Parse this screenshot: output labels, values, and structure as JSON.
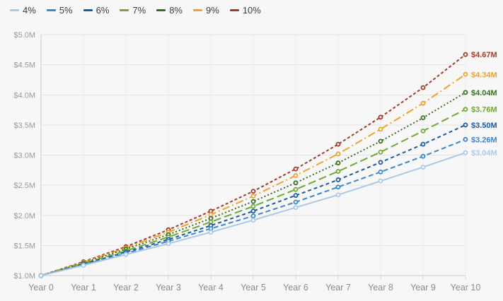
{
  "chart_data": {
    "type": "line",
    "x": [
      0,
      1,
      2,
      3,
      4,
      5,
      6,
      7,
      8,
      9,
      10
    ],
    "x_tick_labels": [
      "Year 0",
      "Year 1",
      "Year 2",
      "Year 3",
      "Year 4",
      "Year 5",
      "Year 6",
      "Year 7",
      "Year 8",
      "Year 9",
      "Year 10"
    ],
    "y_tick_labels": [
      "$1.0M",
      "$1.5M",
      "$2.0M",
      "$2.5M",
      "$3.0M",
      "$3.5M",
      "$4.0M",
      "$4.5M",
      "$5.0M"
    ],
    "ylim": [
      1.0,
      5.0
    ],
    "y_tick_step": 0.5,
    "y_unit": "USD millions",
    "grid": "on",
    "legend_position": "top-left",
    "series": [
      {
        "name": "4%",
        "color": "#a9c9e8",
        "dash": "solid",
        "end_label": "$3.04M",
        "values": [
          1.0,
          1.17,
          1.35,
          1.53,
          1.72,
          1.92,
          2.13,
          2.34,
          2.57,
          2.8,
          3.04
        ]
      },
      {
        "name": "5%",
        "color": "#3d87c9",
        "dash": "dash",
        "end_label": "$3.26M",
        "values": [
          1.0,
          1.18,
          1.37,
          1.57,
          1.78,
          1.99,
          2.22,
          2.47,
          2.72,
          2.98,
          3.26
        ]
      },
      {
        "name": "6%",
        "color": "#1a5c9e",
        "dash": "mediumdash",
        "end_label": "$3.50M",
        "values": [
          1.0,
          1.19,
          1.39,
          1.6,
          1.83,
          2.07,
          2.33,
          2.59,
          2.88,
          3.18,
          3.5
        ]
      },
      {
        "name": "7%",
        "color": "#70a833",
        "dash": "longdash",
        "end_label": "$3.76M",
        "values": [
          1.0,
          1.2,
          1.41,
          1.64,
          1.89,
          2.15,
          2.43,
          2.73,
          3.05,
          3.4,
          3.76
        ]
      },
      {
        "name": "8%",
        "color": "#377020",
        "dash": "dot",
        "end_label": "$4.04M",
        "values": [
          1.0,
          1.21,
          1.44,
          1.68,
          1.95,
          2.23,
          2.54,
          2.87,
          3.23,
          3.62,
          4.04
        ]
      },
      {
        "name": "9%",
        "color": "#f0a22d",
        "dash": "dashdot",
        "end_label": "$4.34M",
        "values": [
          1.0,
          1.22,
          1.46,
          1.72,
          2.01,
          2.32,
          2.66,
          3.02,
          3.43,
          3.86,
          4.34
        ]
      },
      {
        "name": "10%",
        "color": "#a33a2a",
        "dash": "shortdash",
        "end_label": "$4.67M",
        "values": [
          1.0,
          1.23,
          1.48,
          1.76,
          2.07,
          2.4,
          2.77,
          3.18,
          3.63,
          4.12,
          4.67
        ]
      }
    ],
    "colors": {
      "background": "#f7f7f7",
      "grid_horizontal": "#e3e3e3",
      "grid_vertical": "#ececec",
      "axis": "#c9c9c9",
      "tick": "#d7d7d7",
      "y_tick_text": "#9a9a9a",
      "x_tick_text": "#8c8c8c",
      "legend_text": "#3d3d3d"
    }
  }
}
